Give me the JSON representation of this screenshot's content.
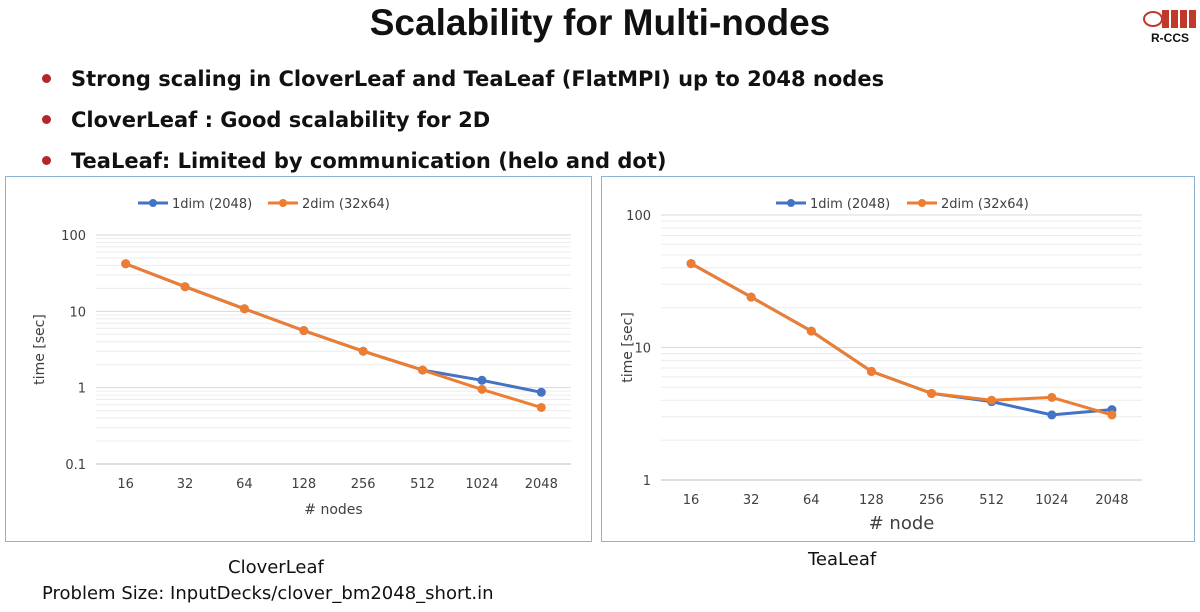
{
  "slide": {
    "title": "Scalability for Multi-nodes",
    "logo_text": "R-CCS",
    "bullets": [
      "Strong scaling in CloverLeaf and TeaLeaf (FlatMPI) up to 2048 nodes",
      "CloverLeaf : Good scalability for 2D",
      "TeaLeaf: Limited by communication (helo and dot)"
    ],
    "captions": {
      "clover": "CloverLeaf",
      "tea": "TeaLeaf"
    },
    "problem_size": "Problem Size: InputDecks/clover_bm2048_short.in"
  },
  "colors": {
    "series1": "#4472c4",
    "series2": "#ed7d31",
    "grid": "#d9d9d9",
    "bullet": "#b5262c",
    "border": "#8fb3d2"
  },
  "chart_data": [
    {
      "type": "line",
      "title": "",
      "xlabel": "# nodes",
      "ylabel": "time [sec]",
      "yscale": "log",
      "ylim": [
        0.1,
        100
      ],
      "yticks": [
        "0.1",
        "1",
        "10",
        "100"
      ],
      "categories": [
        "16",
        "32",
        "64",
        "128",
        "256",
        "512",
        "1024",
        "2048"
      ],
      "legend": "top-center",
      "grid": true,
      "series": [
        {
          "name": "1dim (2048)",
          "values": [
            42,
            21,
            10.8,
            5.6,
            3.0,
            1.7,
            1.25,
            0.87
          ]
        },
        {
          "name": "2dim (32x64)",
          "values": [
            42,
            21,
            10.8,
            5.6,
            3.0,
            1.7,
            0.95,
            0.55
          ]
        }
      ]
    },
    {
      "type": "line",
      "title": "",
      "xlabel": "# node",
      "ylabel": "time [sec]",
      "yscale": "log",
      "ylim": [
        1,
        100
      ],
      "yticks": [
        "1",
        "10",
        "100"
      ],
      "categories": [
        "16",
        "32",
        "64",
        "128",
        "256",
        "512",
        "1024",
        "2048"
      ],
      "legend": "top-center",
      "grid": true,
      "series": [
        {
          "name": "1dim (2048)",
          "values": [
            43,
            24,
            13.3,
            6.6,
            4.5,
            3.9,
            3.1,
            3.4
          ]
        },
        {
          "name": "2dim (32x64)",
          "values": [
            43,
            24,
            13.3,
            6.6,
            4.5,
            4.0,
            4.2,
            3.1
          ]
        }
      ]
    }
  ]
}
